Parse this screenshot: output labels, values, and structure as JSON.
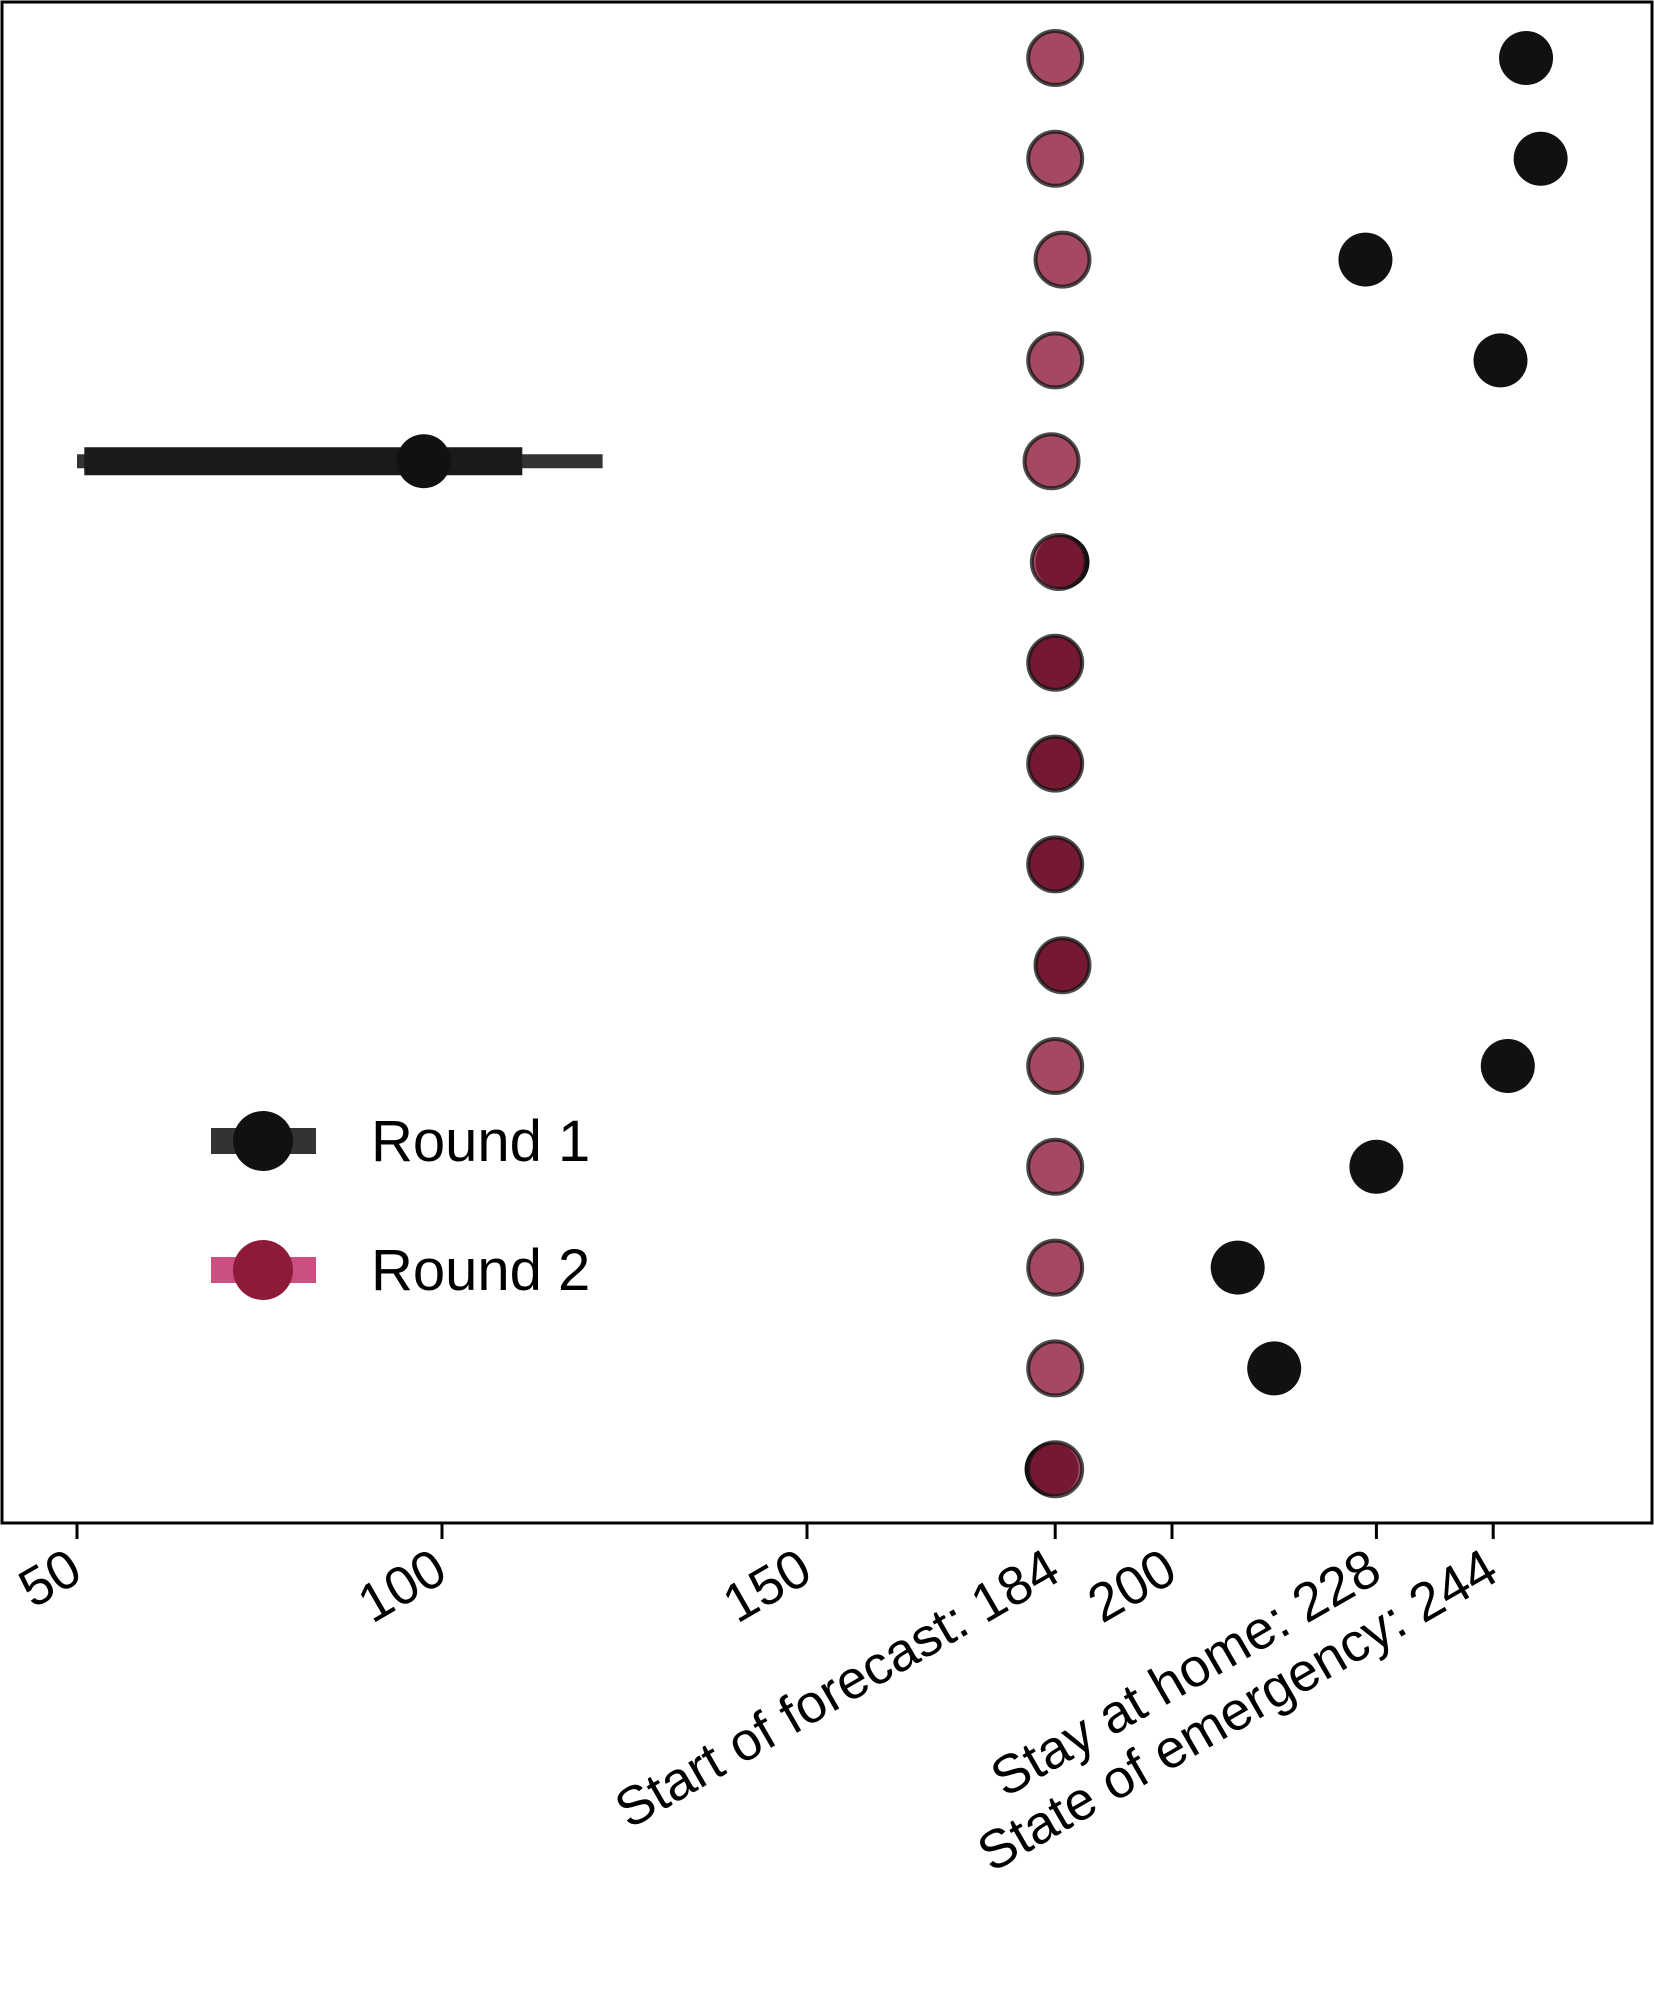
{
  "chart_data": {
    "type": "scatter",
    "orientation": "horizontal-intervals",
    "xlim": [
      50,
      259
    ],
    "x_ticks": [
      {
        "value": 50,
        "label": "50"
      },
      {
        "value": 100,
        "label": "100"
      },
      {
        "value": 150,
        "label": "150"
      },
      {
        "value": 184,
        "label": "Start of forecast: 184"
      },
      {
        "value": 200,
        "label": "200"
      },
      {
        "value": 228,
        "label": "Stay at home: 228"
      },
      {
        "value": 244,
        "label": "State of emergency: 244"
      }
    ],
    "row_count": 15,
    "grid": false,
    "legend": {
      "position": "bottom-left",
      "entries": [
        "Round 1",
        "Round 2"
      ]
    },
    "colors": {
      "round1_point": "#111111",
      "round1_interval": "#333333",
      "round2_point": "#8e1a3a",
      "round2_interval": "#c2306a"
    },
    "series": [
      {
        "name": "Round 1",
        "points": [
          {
            "row": 1,
            "x": 248.5
          },
          {
            "row": 2,
            "x": 250.5
          },
          {
            "row": 3,
            "x": 226.5
          },
          {
            "row": 4,
            "x": 245
          },
          {
            "row": 5,
            "x": 97.5,
            "ci_outer": [
              50,
              122
            ],
            "ci_inner": [
              51,
              111
            ]
          },
          {
            "row": 6,
            "x": 185
          },
          {
            "row": 7,
            "x": 184
          },
          {
            "row": 8,
            "x": 184
          },
          {
            "row": 9,
            "x": 184
          },
          {
            "row": 10,
            "x": 185
          },
          {
            "row": 11,
            "x": 246
          },
          {
            "row": 12,
            "x": 228
          },
          {
            "row": 13,
            "x": 209
          },
          {
            "row": 14,
            "x": 214
          },
          {
            "row": 15,
            "x": 183.5
          }
        ]
      },
      {
        "name": "Round 2",
        "points": [
          {
            "row": 1,
            "x": 184
          },
          {
            "row": 2,
            "x": 184
          },
          {
            "row": 3,
            "x": 185
          },
          {
            "row": 4,
            "x": 184
          },
          {
            "row": 5,
            "x": 183.5
          },
          {
            "row": 6,
            "x": 184.5
          },
          {
            "row": 7,
            "x": 184
          },
          {
            "row": 8,
            "x": 184
          },
          {
            "row": 9,
            "x": 184
          },
          {
            "row": 10,
            "x": 185
          },
          {
            "row": 11,
            "x": 184
          },
          {
            "row": 12,
            "x": 184
          },
          {
            "row": 13,
            "x": 184
          },
          {
            "row": 14,
            "x": 184
          },
          {
            "row": 15,
            "x": 184
          }
        ]
      }
    ]
  }
}
